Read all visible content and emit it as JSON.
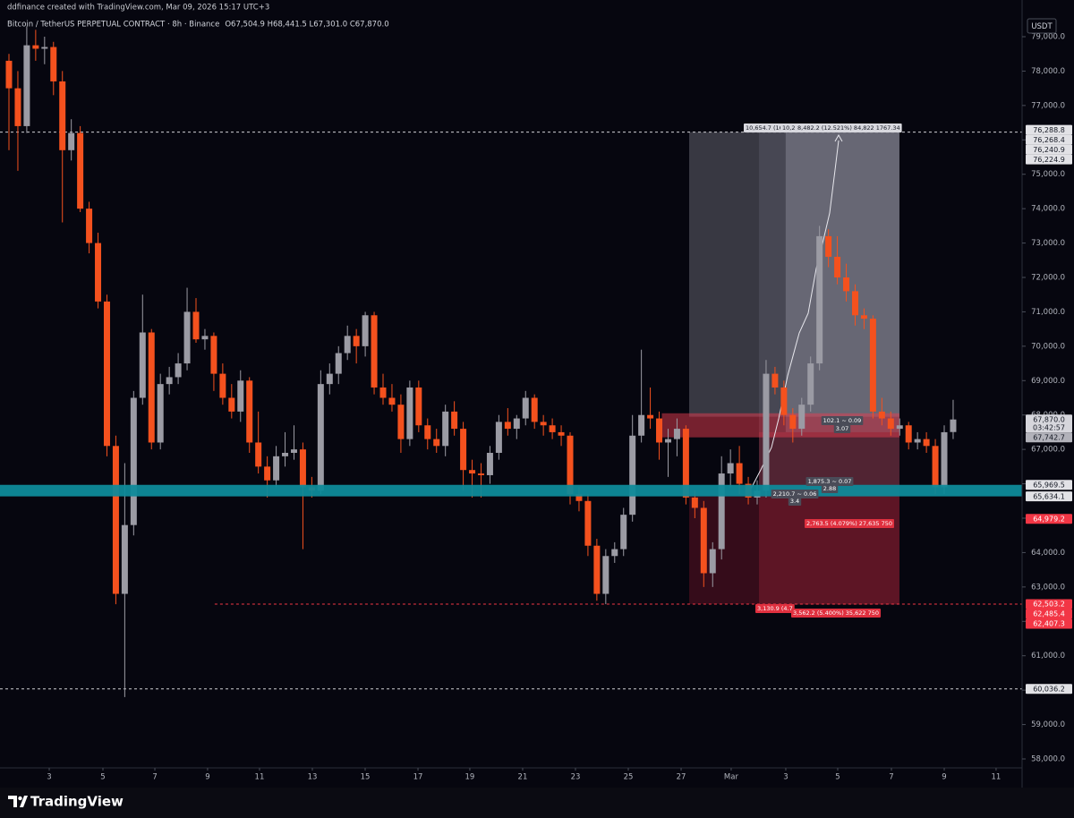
{
  "header": {
    "credit": "ddfinance created with TradingView.com, Mar 09, 2026 15:17 UTC+3",
    "symbol": "Bitcoin / TetherUS PERPETUAL CONTRACT · 8h · Binance",
    "ohlc": "O67,504.9 H68,441.5 L67,301.0 C67,870.0",
    "currency": "USDT"
  },
  "chart_data": {
    "type": "candlestick",
    "up_color": "#9b9ba4",
    "down_color": "#f4511e",
    "open": [
      78300,
      77500,
      76400,
      78750,
      78650,
      78700,
      77700,
      75700,
      76200,
      74000,
      73000,
      71300,
      67100,
      62800,
      64800,
      68500,
      70400,
      67200,
      68900,
      69100,
      69500,
      71000,
      70200,
      70300,
      69200,
      68500,
      68100,
      69000,
      67200,
      66500,
      66100,
      66800,
      66900,
      67000,
      65900,
      65800,
      68900,
      69200,
      69800,
      70300,
      70000,
      70900,
      68800,
      68500,
      68300,
      67300,
      68800,
      67700,
      67300,
      67100,
      68100,
      67600,
      66400,
      66300,
      66250,
      66900,
      67800,
      67600,
      67900,
      68500,
      67800,
      67700,
      67500,
      67400,
      65700,
      65500,
      64200,
      62800,
      63900,
      64100,
      65100,
      67400,
      68000,
      67900,
      67200,
      67300,
      67600,
      65600,
      65300,
      63400,
      64100,
      66300,
      66600,
      66000,
      65600,
      65800,
      69200,
      68800,
      68000,
      67600,
      68300,
      69500,
      73200,
      72600,
      72000,
      71600,
      70900,
      70800,
      68100,
      67900,
      67600,
      67700,
      67200,
      67300,
      67100,
      65900,
      67504.9
    ],
    "high": [
      78500,
      78000,
      79300,
      79200,
      79000,
      78850,
      78000,
      76600,
      76400,
      74200,
      73300,
      71500,
      67400,
      66600,
      68700,
      71500,
      70500,
      69200,
      69400,
      69800,
      71700,
      71400,
      70500,
      70400,
      69500,
      68900,
      69300,
      69100,
      68100,
      66800,
      67100,
      67500,
      67700,
      67200,
      66200,
      69300,
      69500,
      70000,
      70600,
      70500,
      71000,
      71000,
      69200,
      68900,
      68600,
      69000,
      69000,
      67900,
      67600,
      68300,
      68400,
      67800,
      66700,
      66600,
      67100,
      68000,
      68200,
      68000,
      68700,
      68600,
      68000,
      67900,
      67700,
      67500,
      65900,
      65700,
      64400,
      64100,
      64300,
      65300,
      68000,
      69900,
      68800,
      68100,
      67600,
      67900,
      67700,
      65800,
      65500,
      64300,
      66800,
      67000,
      67100,
      66200,
      66100,
      69600,
      69400,
      69000,
      68200,
      68500,
      69700,
      73500,
      73400,
      73200,
      72400,
      71800,
      71100,
      70900,
      68500,
      68100,
      67900,
      67800,
      67500,
      67500,
      67300,
      67700,
      68441.5
    ],
    "low": [
      75700,
      75100,
      76200,
      78300,
      78200,
      77300,
      73600,
      75400,
      73900,
      72700,
      71100,
      66800,
      62500,
      59800,
      64500,
      68300,
      67000,
      67000,
      68600,
      68900,
      69300,
      70100,
      69900,
      68700,
      68300,
      67900,
      67800,
      66900,
      66300,
      65600,
      65900,
      66500,
      66700,
      64100,
      65600,
      65700,
      68600,
      68900,
      69600,
      69500,
      69700,
      68600,
      68300,
      68100,
      66900,
      67100,
      67500,
      67000,
      66900,
      66800,
      67400,
      65800,
      65600,
      65600,
      66000,
      66700,
      67400,
      67300,
      67700,
      67600,
      67400,
      67300,
      67100,
      65400,
      65200,
      63900,
      62600,
      62500,
      63700,
      63900,
      64900,
      67200,
      67600,
      66700,
      66200,
      66800,
      65400,
      65000,
      63000,
      63000,
      63800,
      65900,
      65700,
      65400,
      65400,
      65600,
      68600,
      67700,
      67200,
      67400,
      68100,
      69300,
      72300,
      71800,
      71300,
      70600,
      70500,
      67900,
      67700,
      67400,
      67400,
      67000,
      67000,
      66900,
      65700,
      65700,
      67301.0
    ],
    "close": [
      77500,
      76400,
      78750,
      78650,
      78700,
      77700,
      75700,
      76200,
      74000,
      73000,
      71300,
      67100,
      62800,
      64800,
      68500,
      70400,
      67200,
      68900,
      69100,
      69500,
      71000,
      70200,
      70300,
      69200,
      68500,
      68100,
      69000,
      67200,
      66500,
      66100,
      66800,
      66900,
      67000,
      65900,
      65800,
      68900,
      69200,
      69800,
      70300,
      70000,
      70900,
      68800,
      68500,
      68300,
      67300,
      68800,
      67700,
      67300,
      67100,
      68100,
      67600,
      66400,
      66300,
      66250,
      66900,
      67800,
      67600,
      67900,
      68500,
      67800,
      67700,
      67500,
      67400,
      65700,
      65500,
      64200,
      62800,
      63900,
      64100,
      65100,
      67400,
      68000,
      67900,
      67200,
      67300,
      67600,
      65600,
      65300,
      63400,
      64100,
      66300,
      66600,
      66000,
      65600,
      65800,
      69200,
      68800,
      68000,
      67600,
      68300,
      69500,
      73200,
      72600,
      72000,
      71600,
      70900,
      70800,
      68100,
      67900,
      67600,
      67700,
      67200,
      67300,
      67100,
      65900,
      67500,
      67870.0
    ],
    "xlim": [
      -1.005,
      113.74
    ],
    "ylim": [
      57739.8,
      80066.9
    ],
    "grid": false,
    "xticks": [
      {
        "value": 4.52,
        "label": "3"
      },
      {
        "value": 10.55,
        "label": "5"
      },
      {
        "value": 16.38,
        "label": "7"
      },
      {
        "value": 22.3,
        "label": "9"
      },
      {
        "value": 28.13,
        "label": "11"
      },
      {
        "value": 34.06,
        "label": "13"
      },
      {
        "value": 39.99,
        "label": "15"
      },
      {
        "value": 45.92,
        "label": "17"
      },
      {
        "value": 51.74,
        "label": "19"
      },
      {
        "value": 57.67,
        "label": "21"
      },
      {
        "value": 63.6,
        "label": "23"
      },
      {
        "value": 69.53,
        "label": "25"
      },
      {
        "value": 75.46,
        "label": "27"
      },
      {
        "value": 81.08,
        "label": "Mar"
      },
      {
        "value": 87.21,
        "label": "3"
      },
      {
        "value": 93.04,
        "label": "5"
      },
      {
        "value": 99.07,
        "label": "7"
      },
      {
        "value": 105.0,
        "label": "9"
      },
      {
        "value": 110.82,
        "label": "11"
      }
    ],
    "yticks": [
      {
        "value": 58000,
        "label": "58,000.0"
      },
      {
        "value": 59000,
        "label": "59,000.0"
      },
      {
        "value": 60000,
        "label": "60,000.0"
      },
      {
        "value": 61000,
        "label": "61,000.0"
      },
      {
        "value": 62000,
        "label": "62,000.0"
      },
      {
        "value": 63000,
        "label": "63,000.0"
      },
      {
        "value": 64000,
        "label": "64,000.0"
      },
      {
        "value": 65000,
        "label": "65,000.0"
      },
      {
        "value": 66000,
        "label": "66,000.0"
      },
      {
        "value": 67000,
        "label": "67,000.0"
      },
      {
        "value": 68000,
        "label": "68,000.0"
      },
      {
        "value": 69000,
        "label": "69,000.0"
      },
      {
        "value": 70000,
        "label": "70,000.0"
      },
      {
        "value": 71000,
        "label": "71,000.0"
      },
      {
        "value": 72000,
        "label": "72,000.0"
      },
      {
        "value": 73000,
        "label": "73,000.0"
      },
      {
        "value": 74000,
        "label": "74,000.0"
      },
      {
        "value": 75000,
        "label": "75,000.0"
      },
      {
        "value": 76000,
        "label": "76,000.0"
      },
      {
        "value": 77000,
        "label": "77,000.0"
      },
      {
        "value": 78000,
        "label": "78,000.0"
      },
      {
        "value": 79000,
        "label": "79,000.0"
      }
    ],
    "zones": [
      {
        "x": [
          76.36,
          99.97
        ],
        "y": [
          67950,
          76224.9
        ],
        "color": "rgba(200,200,212,0.26)"
      },
      {
        "x": [
          84.2,
          99.97
        ],
        "y": [
          65800,
          76224.9
        ],
        "color": "rgba(110,110,130,0.28)"
      },
      {
        "x": [
          87.2,
          99.97
        ],
        "y": [
          67500,
          76224.9
        ],
        "color": "rgba(205,205,220,0.24)"
      },
      {
        "x": [
          76.36,
          99.97
        ],
        "y": [
          62503.2,
          65800
        ],
        "color": "rgba(110,20,40,0.45)"
      },
      {
        "x": [
          84.2,
          99.97
        ],
        "y": [
          62485.4,
          67500
        ],
        "color": "rgba(170,40,60,0.35)"
      },
      {
        "x": [
          73.3,
          99.97
        ],
        "y": [
          67350,
          68050
        ],
        "color": "rgba(230,60,80,0.5)"
      }
    ],
    "band": {
      "y": [
        65634.1,
        65969.5
      ],
      "color": "#0e8a9a"
    },
    "price_lines": [
      {
        "value": 76224.9,
        "color": "#cfcfd4",
        "x_from": -1.005
      },
      {
        "value": 60036.2,
        "color": "#cfcfd4",
        "x_from": -1.005
      },
      {
        "value": 62503.2,
        "color": "#f23645",
        "x_from": 23.1
      }
    ],
    "price_labels": [
      {
        "value": 76288.8,
        "label": "76,288.8",
        "bg": "#e2e2e6",
        "fg": "#131722"
      },
      {
        "value": 76268.4,
        "label": "76,268.4",
        "bg": "#e2e2e6",
        "fg": "#131722"
      },
      {
        "value": 76240.9,
        "label": "76,240.9",
        "bg": "#e2e2e6",
        "fg": "#131722"
      },
      {
        "value": 76224.9,
        "label": "76,224.9",
        "bg": "#e2e2e6",
        "fg": "#131722"
      },
      {
        "value": 67870.0,
        "label": "67,870.0",
        "sub": "03:42:57",
        "bg": "#d6d6dc",
        "fg": "#131722"
      },
      {
        "value": 67742.7,
        "label": "67,742.7",
        "bg": "#b2b2ba",
        "fg": "#131722"
      },
      {
        "value": 65969.5,
        "label": "65,969.5",
        "bg": "#e2e2e6",
        "fg": "#131722"
      },
      {
        "value": 65634.1,
        "label": "65,634.1",
        "bg": "#e2e2e6",
        "fg": "#131722"
      },
      {
        "value": 64979.2,
        "label": "64,979.2",
        "bg": "#f23645",
        "fg": "#ffffff"
      },
      {
        "value": 62503.2,
        "label": "62,503.2",
        "bg": "#f23645",
        "fg": "#ffffff"
      },
      {
        "value": 62485.4,
        "label": "62,485.4",
        "bg": "#f23645",
        "fg": "#ffffff"
      },
      {
        "value": 62407.3,
        "label": "62,407.3",
        "bg": "#f23645",
        "fg": "#ffffff"
      },
      {
        "value": 60036.2,
        "label": "60,036.2",
        "bg": "#e2e2e6",
        "fg": "#131722"
      }
    ],
    "annotations": [
      {
        "text": "10,654.7 (16",
        "style": "light"
      },
      {
        "text": "10,27",
        "style": "light"
      },
      {
        "text": "8,482.2 (12.521%) 84,822 1767.34",
        "style": "light"
      },
      {
        "text": "102.1 ~ 0.09",
        "style": "dark"
      },
      {
        "text": "3.07",
        "style": "dark"
      },
      {
        "text": "1,875.3 ~ 0.07",
        "style": "dark"
      },
      {
        "text": "2.88",
        "style": "dark"
      },
      {
        "text": "2,210.7 ~ 0.06",
        "style": "dark"
      },
      {
        "text": "3.4",
        "style": "dark"
      },
      {
        "text": "2,763.5 (4.079%) 27,635 750",
        "style": "red"
      },
      {
        "text": "3,130.9 (4.7",
        "style": "red"
      },
      {
        "text": "3,562.2 (5.400%) 35,622 750",
        "style": "red"
      }
    ]
  },
  "footer": {
    "brand": "TradingView"
  }
}
